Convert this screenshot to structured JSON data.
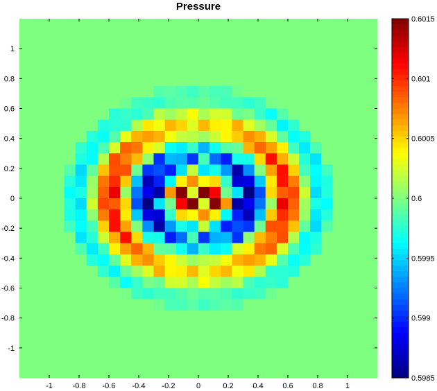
{
  "chart_data": {
    "type": "heatmap",
    "title": "Pressure",
    "xlabel": "",
    "ylabel": "",
    "xlim": [
      -1.2,
      1.2
    ],
    "ylim": [
      -1.2,
      1.2
    ],
    "x_ticks": [
      "-1",
      "-0.8",
      "-0.6",
      "-0.4",
      "-0.2",
      "0",
      "0.2",
      "0.4",
      "0.6",
      "0.8",
      "1"
    ],
    "y_ticks": [
      "1",
      "0.8",
      "0.6",
      "0.4",
      "0.2",
      "0",
      "-0.2",
      "-0.4",
      "-0.6",
      "-0.8",
      "-1"
    ],
    "colorbar": {
      "colormap": "jet",
      "clim": [
        0.5985,
        0.6015
      ],
      "ticks": [
        "0.6015",
        "0.601",
        "0.6005",
        "0.6",
        "0.5995",
        "0.599",
        "0.5985"
      ]
    },
    "grid": false,
    "grid_size": [
      32,
      32
    ]
  }
}
